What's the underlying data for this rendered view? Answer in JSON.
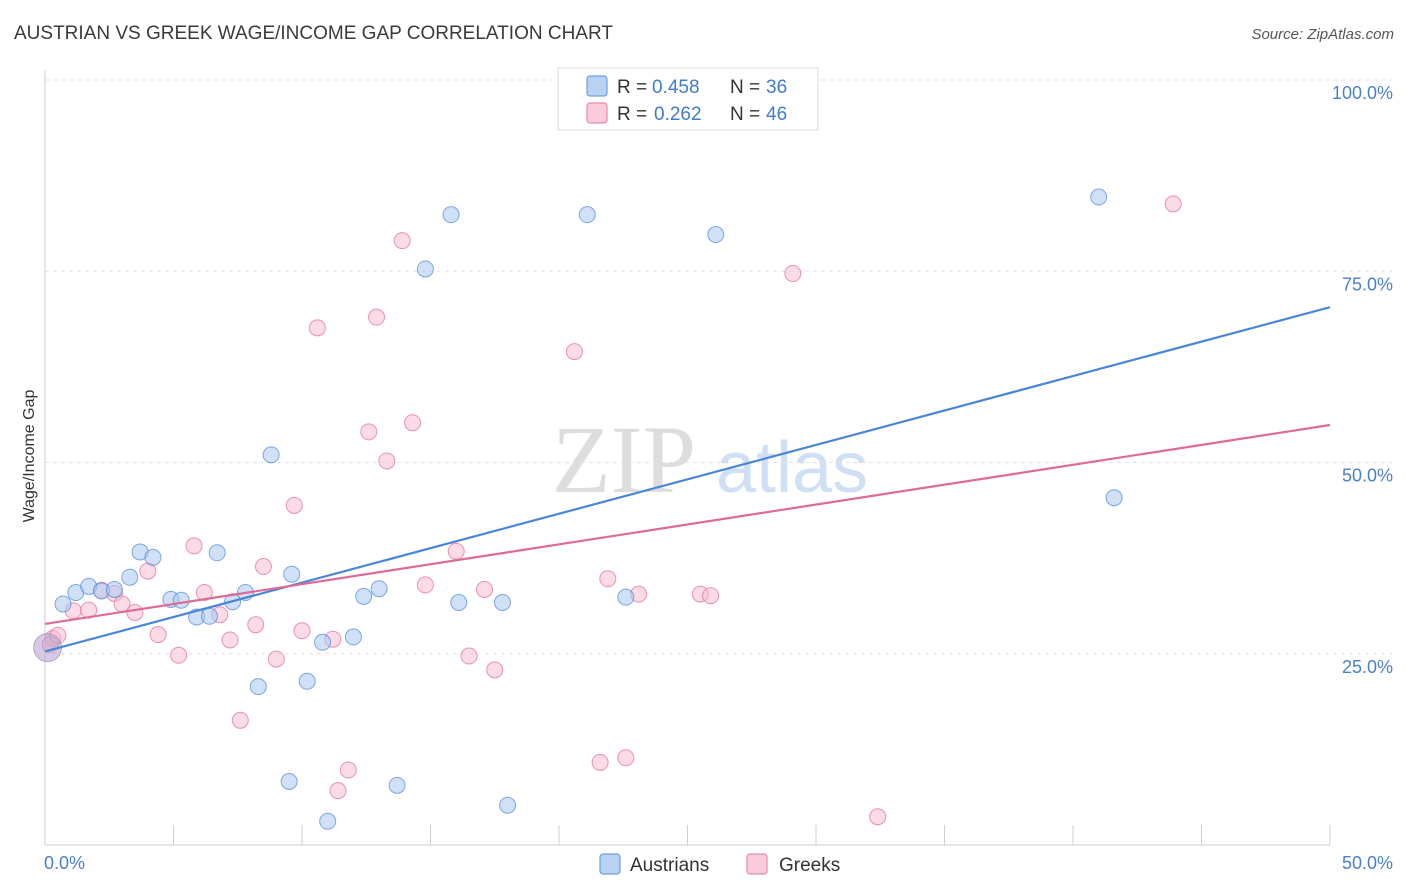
{
  "chart_data": {
    "type": "scatter",
    "title": "AUSTRIAN VS GREEK WAGE/INCOME GAP CORRELATION CHART",
    "source": "Source: ZipAtlas.com",
    "ylabel": "Wage/Income Gap",
    "xlim": [
      0,
      50
    ],
    "ylim": [
      0,
      105
    ],
    "x_tick_labels": [
      "0.0%",
      "50.0%"
    ],
    "y_ticks": [
      {
        "value": 25,
        "label": "25.0%"
      },
      {
        "value": 50,
        "label": "50.0%"
      },
      {
        "value": 75,
        "label": "75.0%"
      },
      {
        "value": 100,
        "label": "100.0%"
      }
    ],
    "watermark": {
      "part1": "ZIP",
      "part2": "atlas"
    },
    "legend": [
      {
        "r_label": "R =",
        "r_value": "0.458",
        "n_label": "N =",
        "n_value": "36"
      },
      {
        "r_label": "R =",
        "r_value": "0.262",
        "n_label": "N =",
        "n_value": "46"
      }
    ],
    "series": [
      {
        "name": "Austrians",
        "color": "#4a86d8",
        "fill": "#aac8f0",
        "trend": [
          [
            0,
            25.3
          ],
          [
            50,
            70.3
          ]
        ],
        "points": [
          [
            0.7,
            31.5
          ],
          [
            1.2,
            33.0
          ],
          [
            1.7,
            33.8
          ],
          [
            2.2,
            33.2
          ],
          [
            2.7,
            33.4
          ],
          [
            3.3,
            35.0
          ],
          [
            3.7,
            38.3
          ],
          [
            4.2,
            37.6
          ],
          [
            4.9,
            32.1
          ],
          [
            5.3,
            32.0
          ],
          [
            5.9,
            29.8
          ],
          [
            6.4,
            29.9
          ],
          [
            6.7,
            38.2
          ],
          [
            7.3,
            31.8
          ],
          [
            7.8,
            33.0
          ],
          [
            8.3,
            20.7
          ],
          [
            8.8,
            51.0
          ],
          [
            9.5,
            8.3
          ],
          [
            9.6,
            35.4
          ],
          [
            10.2,
            21.4
          ],
          [
            10.8,
            26.5
          ],
          [
            11.0,
            3.1
          ],
          [
            12.0,
            27.2
          ],
          [
            12.4,
            32.5
          ],
          [
            13.0,
            33.5
          ],
          [
            13.7,
            7.8
          ],
          [
            14.8,
            75.3
          ],
          [
            15.8,
            82.4
          ],
          [
            16.1,
            31.7
          ],
          [
            17.8,
            31.7
          ],
          [
            18.0,
            5.2
          ],
          [
            21.1,
            82.4
          ],
          [
            22.6,
            32.4
          ],
          [
            26.1,
            79.8
          ],
          [
            41.0,
            84.7
          ],
          [
            41.6,
            45.4
          ]
        ]
      },
      {
        "name": "Greeks",
        "color": "#e06a96",
        "fill": "#f7bdd0",
        "trend": [
          [
            0,
            28.9
          ],
          [
            50,
            54.9
          ]
        ],
        "points": [
          [
            0.3,
            27.0
          ],
          [
            1.1,
            30.6
          ],
          [
            1.7,
            30.7
          ],
          [
            2.2,
            33.3
          ],
          [
            2.7,
            32.9
          ],
          [
            3.0,
            31.5
          ],
          [
            3.5,
            30.4
          ],
          [
            4.0,
            35.8
          ],
          [
            4.4,
            27.5
          ],
          [
            5.2,
            24.8
          ],
          [
            5.8,
            39.1
          ],
          [
            6.2,
            33.0
          ],
          [
            6.8,
            30.1
          ],
          [
            7.2,
            26.8
          ],
          [
            7.6,
            16.3
          ],
          [
            8.2,
            28.8
          ],
          [
            8.5,
            36.4
          ],
          [
            9.0,
            24.3
          ],
          [
            9.7,
            44.4
          ],
          [
            10.0,
            28.0
          ],
          [
            10.6,
            67.6
          ],
          [
            11.2,
            26.9
          ],
          [
            11.4,
            7.1
          ],
          [
            11.8,
            9.8
          ],
          [
            12.6,
            54.0
          ],
          [
            12.9,
            69.0
          ],
          [
            13.3,
            50.2
          ],
          [
            13.9,
            79.0
          ],
          [
            14.3,
            55.2
          ],
          [
            14.8,
            34.0
          ],
          [
            16.0,
            38.4
          ],
          [
            16.5,
            24.7
          ],
          [
            17.1,
            33.4
          ],
          [
            17.5,
            22.9
          ],
          [
            20.6,
            64.5
          ],
          [
            21.6,
            10.8
          ],
          [
            21.9,
            34.8
          ],
          [
            22.6,
            11.4
          ],
          [
            23.1,
            32.8
          ],
          [
            25.5,
            32.8
          ],
          [
            25.9,
            32.6
          ],
          [
            29.1,
            74.7
          ],
          [
            32.4,
            3.7
          ],
          [
            43.9,
            83.8
          ],
          [
            0.2,
            26.2
          ],
          [
            0.5,
            27.4
          ]
        ]
      }
    ]
  }
}
